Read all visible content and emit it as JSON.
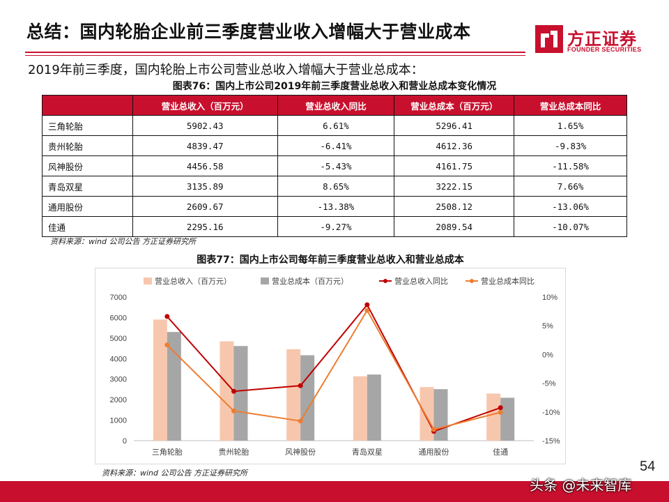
{
  "header": {
    "title": "总结：国内轮胎企业前三季度营业收入增幅大于营业成本",
    "logo_cn": "方正证券",
    "logo_en": "FOUNDER SECURITIES"
  },
  "subtitle": "2019年前三季度，国内轮胎上市公司营业总收入增幅大于营业总成本：",
  "table": {
    "caption": "图表76：国内上市公司2019年前三季度营业总收入和营业总成本变化情况",
    "headers": [
      "",
      "营业总收入（百万元）",
      "营业总收入同比",
      "营业总成本（百万元）",
      "营业总成本同比"
    ],
    "rows": [
      {
        "name": "三角轮胎",
        "revenue": "5902.43",
        "revenue_yoy": "6.61%",
        "cost": "5296.41",
        "cost_yoy": "1.65%"
      },
      {
        "name": "贵州轮胎",
        "revenue": "4839.47",
        "revenue_yoy": "-6.41%",
        "cost": "4612.36",
        "cost_yoy": "-9.83%"
      },
      {
        "name": "风神股份",
        "revenue": "4456.58",
        "revenue_yoy": "-5.43%",
        "cost": "4161.75",
        "cost_yoy": "-11.58%"
      },
      {
        "name": "青岛双星",
        "revenue": "3135.89",
        "revenue_yoy": "8.65%",
        "cost": "3222.15",
        "cost_yoy": "7.66%"
      },
      {
        "name": "通用股份",
        "revenue": "2609.67",
        "revenue_yoy": "-13.38%",
        "cost": "2508.12",
        "cost_yoy": "-13.06%"
      },
      {
        "name": "佳通",
        "revenue": "2295.16",
        "revenue_yoy": "-9.27%",
        "cost": "2089.54",
        "cost_yoy": "-10.07%"
      }
    ],
    "source": "资料来源：wind 公司公告 方正证券研究所"
  },
  "chart": {
    "caption": "图表77：国内上市公司每年前三季度营业总收入和营业总成本",
    "source": "资料来源：wind 公司公告 方正证券研究所"
  },
  "chart_data": {
    "type": "bar",
    "categories": [
      "三角轮胎",
      "贵州轮胎",
      "风神股份",
      "青岛双星",
      "通用股份",
      "佳通"
    ],
    "series": [
      {
        "name": "营业总收入（百万元）",
        "kind": "bar",
        "axis": "left",
        "color": "#f7c7ad",
        "values": [
          5902.43,
          4839.47,
          4456.58,
          3135.89,
          2609.67,
          2295.16
        ]
      },
      {
        "name": "营业总成本（百万元）",
        "kind": "bar",
        "axis": "left",
        "color": "#a6a6a6",
        "values": [
          5296.41,
          4612.36,
          4161.75,
          3222.15,
          2508.12,
          2089.54
        ]
      },
      {
        "name": "营业总收入同比",
        "kind": "line",
        "axis": "right",
        "color": "#c00000",
        "values": [
          6.61,
          -6.41,
          -5.43,
          8.65,
          -13.38,
          -9.27
        ]
      },
      {
        "name": "营业总成本同比",
        "kind": "line",
        "axis": "right",
        "color": "#ed7d31",
        "values": [
          1.65,
          -9.83,
          -11.58,
          7.66,
          -13.06,
          -10.07
        ]
      }
    ],
    "y_left": {
      "range": [
        0,
        7000
      ],
      "ticks": [
        "0",
        "1000",
        "2000",
        "3000",
        "4000",
        "5000",
        "6000",
        "7000"
      ]
    },
    "y_right": {
      "range": [
        -15,
        10
      ],
      "ticks": [
        "-15%",
        "-10%",
        "-5%",
        "0%",
        "5%",
        "10%"
      ]
    },
    "grid": false,
    "legend": "top"
  },
  "page_number": "54",
  "watermark": "头条 @未来智库"
}
